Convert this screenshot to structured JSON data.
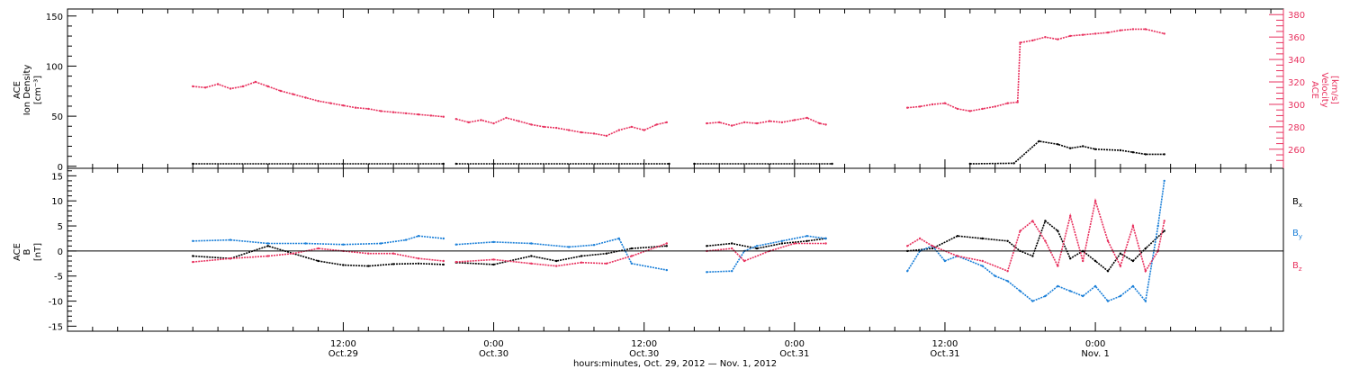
{
  "colors": {
    "black": "#000000",
    "pink": "#e8325f",
    "blue": "#1a7fd8",
    "axis": "#000000"
  },
  "chart_data": [
    {
      "id": "top-panel",
      "type": "scatter",
      "ylabel_left": [
        "ACE",
        "Ion Density",
        "[cm⁻³]"
      ],
      "ylabel_right": [
        "ACE",
        "Velocity",
        "[km/s]"
      ],
      "ylim_left": [
        -2,
        157
      ],
      "ylim_right": [
        243,
        385
      ],
      "yticks_left": [
        "0",
        "50",
        "100",
        "150"
      ],
      "yticks_left_values": [
        0,
        50,
        100,
        150
      ],
      "yticks_right": [
        "260",
        "280",
        "300",
        "320",
        "340",
        "360",
        "380"
      ],
      "yticks_right_values": [
        260,
        280,
        300,
        320,
        340,
        360,
        380
      ],
      "series": [
        {
          "key": "density",
          "axis": "left",
          "color": "black",
          "segments": [
            [
              [
                0.0,
                2.5
              ],
              [
                20.0,
                2.5
              ]
            ],
            [
              [
                21.0,
                2.5
              ],
              [
                38.0,
                2.5
              ]
            ],
            [
              [
                40.0,
                2.5
              ],
              [
                51.0,
                2.5
              ]
            ],
            [
              [
                62.0,
                2.5
              ],
              [
                65.5,
                3
              ],
              [
                67.5,
                25
              ],
              [
                69,
                22
              ],
              [
                70,
                18
              ],
              [
                71,
                20
              ],
              [
                72,
                17
              ],
              [
                74,
                16
              ],
              [
                75,
                14
              ],
              [
                76,
                12
              ],
              [
                77.5,
                12
              ]
            ]
          ]
        },
        {
          "key": "velocity",
          "axis": "right",
          "color": "pink",
          "segments": [
            [
              [
                0,
                316
              ],
              [
                1,
                315
              ],
              [
                2,
                318
              ],
              [
                3,
                314
              ],
              [
                4,
                316
              ],
              [
                5,
                320
              ],
              [
                6,
                316
              ],
              [
                7,
                312
              ],
              [
                8,
                309
              ],
              [
                9,
                306
              ],
              [
                10,
                303
              ],
              [
                11,
                301
              ],
              [
                12,
                299
              ],
              [
                13,
                297
              ],
              [
                14,
                296
              ],
              [
                15,
                294
              ],
              [
                16,
                293
              ],
              [
                17,
                292
              ],
              [
                18,
                291
              ],
              [
                19,
                290
              ],
              [
                20,
                289
              ]
            ],
            [
              [
                21,
                287
              ],
              [
                22,
                284
              ],
              [
                23,
                286
              ],
              [
                24,
                283
              ],
              [
                25,
                288
              ],
              [
                26,
                285
              ],
              [
                27,
                282
              ],
              [
                28,
                280
              ],
              [
                29,
                279
              ],
              [
                30,
                277
              ],
              [
                31,
                275
              ],
              [
                32,
                274
              ],
              [
                33,
                272
              ],
              [
                34,
                277
              ],
              [
                35,
                280
              ],
              [
                36,
                277
              ],
              [
                37,
                282
              ],
              [
                37.8,
                284
              ]
            ],
            [
              [
                41,
                283
              ],
              [
                42,
                284
              ],
              [
                43,
                281
              ],
              [
                44,
                284
              ],
              [
                45,
                283
              ],
              [
                46,
                285
              ],
              [
                47,
                284
              ],
              [
                48,
                286
              ],
              [
                49,
                288
              ],
              [
                50,
                283
              ],
              [
                50.5,
                282
              ]
            ],
            [
              [
                57,
                297
              ],
              [
                58,
                298
              ],
              [
                59,
                300
              ],
              [
                60,
                301
              ],
              [
                61,
                296
              ],
              [
                62,
                294
              ],
              [
                63,
                296
              ],
              [
                64,
                298
              ],
              [
                65,
                301
              ],
              [
                65.8,
                302
              ],
              [
                66,
                355
              ],
              [
                67,
                357
              ],
              [
                68,
                360
              ],
              [
                69,
                358
              ],
              [
                70,
                361
              ],
              [
                71,
                362
              ],
              [
                72,
                363
              ],
              [
                73,
                364
              ],
              [
                74,
                366
              ],
              [
                75,
                367
              ],
              [
                76,
                367
              ],
              [
                77.5,
                363
              ]
            ]
          ]
        }
      ]
    },
    {
      "id": "bottom-panel",
      "type": "scatter",
      "ylabel_left": [
        "ACE",
        "B",
        "[nT]"
      ],
      "ylim": [
        -16,
        16.5
      ],
      "yticks": [
        "-15",
        "-10",
        "-5",
        "0",
        "5",
        "10",
        "15"
      ],
      "yticks_values": [
        -15,
        -10,
        -5,
        0,
        5,
        10,
        15
      ],
      "legend": [
        "Bx",
        "By",
        "Bz"
      ],
      "series": [
        {
          "name": "Bx",
          "color": "black",
          "segments": [
            [
              [
                0,
                -1
              ],
              [
                3,
                -1.5
              ],
              [
                6,
                1
              ],
              [
                8,
                -0.5
              ],
              [
                10,
                -2
              ],
              [
                12,
                -2.8
              ],
              [
                14,
                -3
              ],
              [
                16,
                -2.6
              ],
              [
                18,
                -2.5
              ],
              [
                20,
                -2.7
              ]
            ],
            [
              [
                21,
                -2.3
              ],
              [
                24,
                -2.7
              ],
              [
                27,
                -1
              ],
              [
                29,
                -2
              ],
              [
                31,
                -1
              ],
              [
                33,
                -0.5
              ],
              [
                35,
                0.5
              ],
              [
                37.8,
                1
              ]
            ],
            [
              [
                41,
                1
              ],
              [
                43,
                1.5
              ],
              [
                45,
                0.5
              ],
              [
                47,
                1.5
              ],
              [
                49,
                2
              ],
              [
                50.5,
                2.5
              ]
            ],
            [
              [
                57,
                0
              ],
              [
                59,
                0.5
              ],
              [
                61,
                3
              ],
              [
                63,
                2.5
              ],
              [
                65,
                2
              ],
              [
                66,
                0
              ],
              [
                67,
                -1
              ],
              [
                68,
                6
              ],
              [
                69,
                4
              ],
              [
                70,
                -1.5
              ],
              [
                71,
                0
              ],
              [
                72,
                -2
              ],
              [
                73,
                -4
              ],
              [
                74,
                -0.5
              ],
              [
                75,
                -2
              ],
              [
                76,
                0.5
              ],
              [
                77.5,
                4
              ]
            ]
          ]
        },
        {
          "name": "By",
          "color": "blue",
          "segments": [
            [
              [
                0,
                2
              ],
              [
                3,
                2.2
              ],
              [
                6,
                1.5
              ],
              [
                9,
                1.5
              ],
              [
                12,
                1.3
              ],
              [
                15,
                1.5
              ],
              [
                17,
                2.2
              ],
              [
                18,
                3
              ],
              [
                20,
                2.5
              ]
            ],
            [
              [
                21,
                1.3
              ],
              [
                24,
                1.8
              ],
              [
                27,
                1.5
              ],
              [
                30,
                0.8
              ],
              [
                32,
                1.2
              ],
              [
                34,
                2.5
              ],
              [
                35,
                -2.5
              ],
              [
                37.8,
                -3.8
              ]
            ],
            [
              [
                41,
                -4.2
              ],
              [
                43,
                -4
              ],
              [
                44,
                0
              ],
              [
                45,
                1
              ],
              [
                47,
                2
              ],
              [
                49,
                3
              ],
              [
                50.5,
                2.5
              ]
            ],
            [
              [
                57,
                -4
              ],
              [
                58,
                0
              ],
              [
                59,
                1
              ],
              [
                60,
                -2
              ],
              [
                61,
                -1
              ],
              [
                63,
                -3
              ],
              [
                64,
                -5
              ],
              [
                65,
                -6
              ],
              [
                66,
                -8
              ],
              [
                67,
                -10
              ],
              [
                68,
                -9
              ],
              [
                69,
                -7
              ],
              [
                70,
                -8
              ],
              [
                71,
                -9
              ],
              [
                72,
                -7
              ],
              [
                73,
                -10
              ],
              [
                74,
                -9
              ],
              [
                75,
                -7
              ],
              [
                76,
                -10
              ],
              [
                77,
                5
              ],
              [
                77.5,
                14
              ]
            ]
          ]
        },
        {
          "name": "Bz",
          "color": "pink",
          "segments": [
            [
              [
                0,
                -2.2
              ],
              [
                3,
                -1.5
              ],
              [
                6,
                -1
              ],
              [
                8,
                -0.5
              ],
              [
                10,
                0.5
              ],
              [
                12,
                0
              ],
              [
                14,
                -0.5
              ],
              [
                16,
                -0.5
              ],
              [
                18,
                -1.5
              ],
              [
                20,
                -2
              ]
            ],
            [
              [
                21,
                -2.2
              ],
              [
                24,
                -1.7
              ],
              [
                27,
                -2.5
              ],
              [
                29,
                -3
              ],
              [
                31,
                -2.3
              ],
              [
                33,
                -2.5
              ],
              [
                35,
                -1
              ],
              [
                37.8,
                1.5
              ]
            ],
            [
              [
                41,
                0
              ],
              [
                43,
                0.5
              ],
              [
                44,
                -2
              ],
              [
                46,
                0
              ],
              [
                48,
                1.5
              ],
              [
                50.5,
                1.5
              ]
            ],
            [
              [
                57,
                1
              ],
              [
                58,
                2.5
              ],
              [
                59,
                1
              ],
              [
                61,
                -1
              ],
              [
                63,
                -2
              ],
              [
                65,
                -4
              ],
              [
                66,
                4
              ],
              [
                67,
                6
              ],
              [
                68,
                2
              ],
              [
                69,
                -3
              ],
              [
                70,
                7
              ],
              [
                71,
                -2
              ],
              [
                72,
                10
              ],
              [
                73,
                2
              ],
              [
                74,
                -3
              ],
              [
                75,
                5
              ],
              [
                76,
                -4
              ],
              [
                77,
                0
              ],
              [
                77.5,
                6
              ]
            ]
          ]
        }
      ]
    }
  ],
  "x_axis": {
    "range_hours": [
      -10,
      87
    ],
    "major_ticks": [
      {
        "hour": 12,
        "time": "12:00",
        "date": "Oct.29"
      },
      {
        "hour": 24,
        "time": "0:00",
        "date": "Oct.30"
      },
      {
        "hour": 36,
        "time": "12:00",
        "date": "Oct.30"
      },
      {
        "hour": 48,
        "time": "0:00",
        "date": "Oct.31"
      },
      {
        "hour": 60,
        "time": "12:00",
        "date": "Oct.31"
      },
      {
        "hour": 72,
        "time": "0:00",
        "date": "Nov. 1"
      }
    ],
    "minor_tick_hours": [
      -8,
      -6,
      -4,
      -2,
      0,
      2,
      4,
      6,
      8,
      10,
      14,
      16,
      18,
      20,
      22,
      26,
      28,
      30,
      32,
      34,
      38,
      40,
      42,
      44,
      46,
      50,
      52,
      54,
      56,
      58,
      62,
      64,
      66,
      68,
      70,
      74,
      76,
      78,
      80,
      82,
      84,
      86
    ],
    "xlabel": "hours:minutes, Oct. 29, 2012 — Nov. 1, 2012"
  },
  "legend_labels": {
    "bx": {
      "main": "B",
      "sub": "x"
    },
    "by": {
      "main": "B",
      "sub": "y"
    },
    "bz": {
      "main": "B",
      "sub": "z"
    }
  }
}
